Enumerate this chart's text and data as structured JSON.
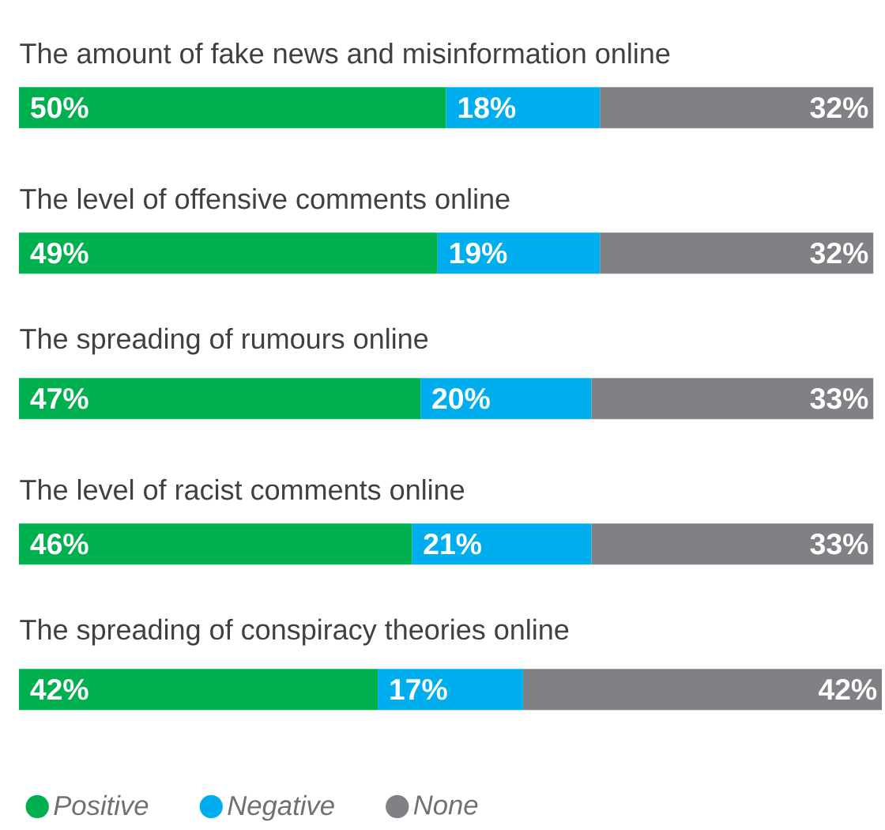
{
  "chart_data": {
    "type": "bar",
    "orientation": "horizontal",
    "stacked": true,
    "legend": "bottom",
    "tick_labels": false,
    "categories": [
      "The amount of fake news and misinformation online",
      "The level of offensive comments online",
      "The spreading of rumours online",
      "The level of racist comments online",
      "The spreading of conspiracy theories online"
    ],
    "series": [
      {
        "name": "Positive",
        "color": "#00b04f",
        "values": [
          50,
          49,
          47,
          46,
          42
        ],
        "value_labels": [
          "50%",
          "49%",
          "47%",
          "46%",
          "42%"
        ]
      },
      {
        "name": "Negative",
        "color": "#00aeef",
        "values": [
          18,
          19,
          20,
          21,
          17
        ],
        "value_labels": [
          "18%",
          "19%",
          "20%",
          "21%",
          "17%"
        ]
      },
      {
        "name": "None",
        "color": "#808184",
        "values": [
          32,
          32,
          33,
          33,
          42
        ],
        "value_labels": [
          "32%",
          "32%",
          "33%",
          "33%",
          "42%"
        ]
      }
    ]
  }
}
